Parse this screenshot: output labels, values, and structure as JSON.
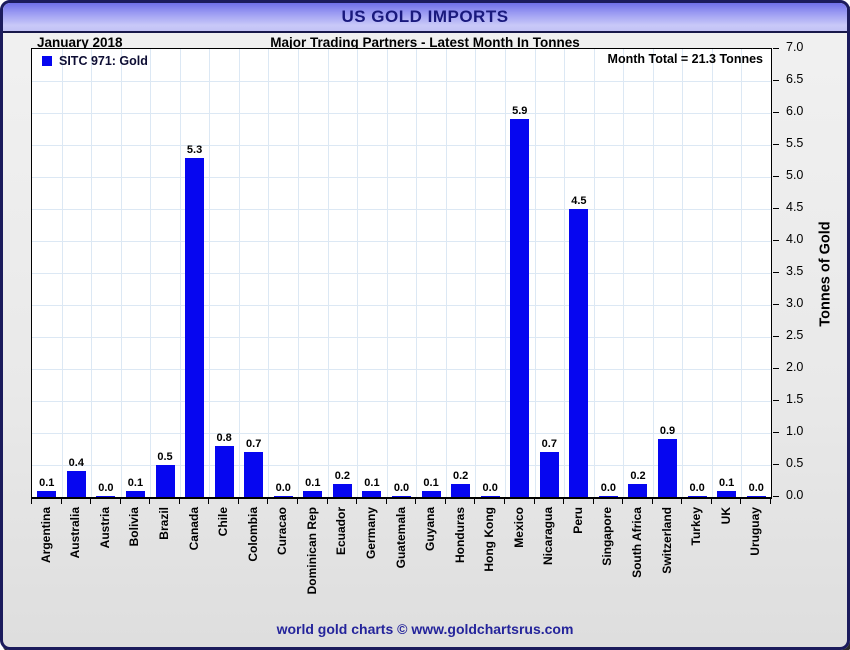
{
  "window": {
    "title": "US GOLD IMPORTS",
    "period": "January 2018",
    "subtitle": "Major Trading Partners - Latest Month In Tonnes",
    "footer_credit": "world gold charts © www.goldchartsrus.com"
  },
  "legend": {
    "label": "SITC 971: Gold"
  },
  "annotations": {
    "month_total": "Month Total = 21.3 Tonnes"
  },
  "y_axis": {
    "title": "Tonnes of Gold"
  },
  "colors": {
    "bar": "#0606f0",
    "grid": "#dce8f4",
    "title_text": "#19197d",
    "footer_text": "#24249b",
    "header_gradient_top": "#6f6fe8",
    "header_gradient_bottom": "#c9c9f8"
  },
  "chart_data": {
    "type": "bar",
    "title": "US GOLD IMPORTS",
    "subtitle": "Major Trading Partners - Latest Month In Tonnes",
    "period": "January 2018",
    "legend": [
      "SITC 971: Gold"
    ],
    "legend_position": "top-left",
    "annotation": "Month Total = 21.3 Tonnes",
    "xlabel": "",
    "ylabel": "Tonnes of Gold",
    "ylim": [
      0,
      7
    ],
    "ytick_step": 0.5,
    "grid": true,
    "value_label_decimals": 1,
    "categories": [
      "Argentina",
      "Australia",
      "Austria",
      "Bolivia",
      "Brazil",
      "Canada",
      "Chile",
      "Colombia",
      "Curacao",
      "Dominican Rep",
      "Ecuador",
      "Germany",
      "Guatemala",
      "Guyana",
      "Honduras",
      "Hong Kong",
      "Mexico",
      "Nicaragua",
      "Peru",
      "Singapore",
      "South Africa",
      "Switzerland",
      "Turkey",
      "UK",
      "Uruguay"
    ],
    "values": [
      0.1,
      0.4,
      0.0,
      0.1,
      0.5,
      5.3,
      0.8,
      0.7,
      0.0,
      0.1,
      0.2,
      0.1,
      0.0,
      0.1,
      0.2,
      0.0,
      5.9,
      0.7,
      4.5,
      0.0,
      0.2,
      0.9,
      0.0,
      0.1,
      0.0
    ]
  }
}
